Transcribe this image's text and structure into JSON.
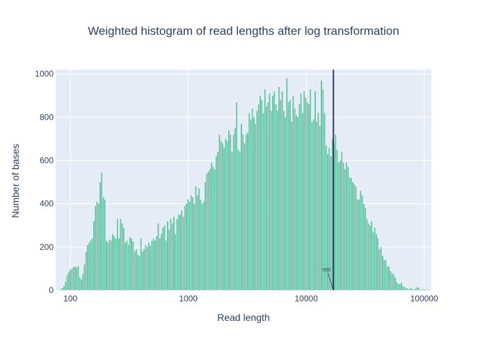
{
  "chart_data": {
    "type": "bar",
    "title": "Weighted histogram of read lengths after log transformation",
    "xlabel": "Read length",
    "ylabel": "Number of bases",
    "x_scale": "log",
    "xlim": [
      75,
      115000
    ],
    "ylim": [
      0,
      1020
    ],
    "x_ticks": [
      {
        "value": 100,
        "label": "100"
      },
      {
        "value": 1000,
        "label": "1000"
      },
      {
        "value": 10000,
        "label": "10000"
      },
      {
        "value": 100000,
        "label": "100000"
      }
    ],
    "y_ticks": [
      {
        "value": 0,
        "label": "0"
      },
      {
        "value": 200,
        "label": "200"
      },
      {
        "value": 400,
        "label": "400"
      },
      {
        "value": 600,
        "label": "600"
      },
      {
        "value": 800,
        "label": "800"
      },
      {
        "value": 1000,
        "label": "1000"
      }
    ],
    "grid": true,
    "bar_color": "#66c2a5",
    "line_color": "#2a3f5f",
    "bins_log10_min": 1.9,
    "bins_log10_max": 5.04,
    "values": [
      2,
      5,
      10,
      20,
      40,
      70,
      85,
      95,
      100,
      108,
      110,
      105,
      112,
      60,
      50,
      75,
      120,
      180,
      210,
      220,
      230,
      240,
      320,
      390,
      410,
      400,
      500,
      545,
      430,
      420,
      230,
      220,
      235,
      230,
      260,
      250,
      240,
      330,
      240,
      330,
      310,
      290,
      220,
      230,
      210,
      245,
      240,
      225,
      180,
      190,
      165,
      160,
      240,
      180,
      190,
      210,
      200,
      220,
      205,
      230,
      240,
      230,
      250,
      310,
      240,
      260,
      290,
      300,
      230,
      320,
      280,
      330,
      310,
      340,
      260,
      330,
      350,
      350,
      370,
      340,
      390,
      400,
      420,
      410,
      440,
      430,
      400,
      480,
      440,
      470,
      420,
      400,
      410,
      500,
      540,
      550,
      560,
      590,
      570,
      560,
      620,
      640,
      720,
      690,
      680,
      660,
      700,
      690,
      740,
      720,
      640,
      720,
      750,
      870,
      650,
      640,
      770,
      720,
      680,
      720,
      730,
      820,
      790,
      840,
      800,
      770,
      830,
      860,
      900,
      880,
      820,
      930,
      850,
      870,
      910,
      830,
      900,
      920,
      860,
      830,
      940,
      880,
      920,
      830,
      800,
      980,
      870,
      880,
      780,
      900,
      840,
      810,
      800,
      860,
      910,
      820,
      920,
      890,
      870,
      860,
      930,
      780,
      790,
      920,
      780,
      820,
      760,
      970,
      930,
      820,
      670,
      630,
      660,
      620,
      700,
      680,
      720,
      650,
      590,
      600,
      640,
      590,
      560,
      590,
      570,
      520,
      520,
      500,
      490,
      480,
      420,
      420,
      460,
      440,
      400,
      380,
      330,
      310,
      300,
      320,
      270,
      290,
      260,
      240,
      190,
      200,
      160,
      140,
      140,
      110,
      110,
      90,
      80,
      75,
      60,
      40,
      30,
      30,
      35,
      20,
      15,
      10,
      8,
      5,
      12,
      6,
      4,
      8,
      15,
      12,
      4,
      3,
      6,
      4,
      3,
      2
    ],
    "n50": {
      "value": 17000,
      "label": "N50"
    }
  }
}
